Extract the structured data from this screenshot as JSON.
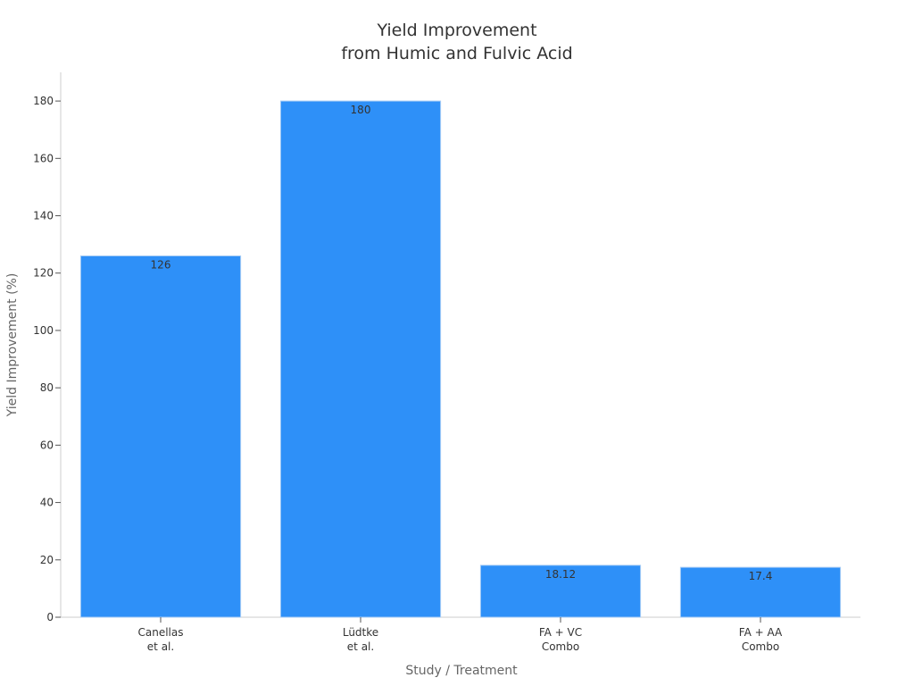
{
  "chart_data": {
    "type": "bar",
    "title": [
      "Yield Improvement",
      "from Humic and Fulvic Acid"
    ],
    "xlabel": "Study / Treatment",
    "ylabel": "Yield Improvement (%)",
    "categories": [
      [
        "Canellas",
        "et al."
      ],
      [
        "Lüdtke",
        "et al."
      ],
      [
        "FA + VC",
        "Combo"
      ],
      [
        "FA + AA",
        "Combo"
      ]
    ],
    "values": [
      126,
      180,
      18.12,
      17.4
    ],
    "data_labels": [
      "126",
      "180",
      "18.12",
      "17.4"
    ],
    "ylim": [
      0,
      190
    ],
    "yticks": [
      0,
      20,
      40,
      60,
      80,
      100,
      120,
      140,
      160,
      180
    ],
    "grid": false,
    "legend": "none",
    "colors": {
      "bar": "#2e90f8",
      "bar_edge": "#a9cdf5",
      "axis": "#cccccc"
    }
  }
}
